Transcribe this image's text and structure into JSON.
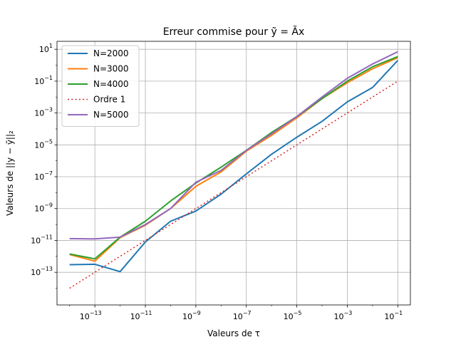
{
  "chart_data": {
    "type": "line",
    "title": "Erreur commise pour ỹ = Ãx",
    "xlabel": "Valeurs de τ",
    "ylabel": "Valeurs de ||y − ỹ||₂",
    "x_scale": "log",
    "y_scale": "log",
    "xlim": [
      3.16e-15,
      0.316
    ],
    "ylim": [
      8.91e-16,
      31.6
    ],
    "grid": true,
    "legend_position": "top-left",
    "x_ticks": [
      {
        "value": 1e-13,
        "base": "10",
        "exp": "−13"
      },
      {
        "value": 1e-11,
        "base": "10",
        "exp": "−11"
      },
      {
        "value": 1e-09,
        "base": "10",
        "exp": "−9"
      },
      {
        "value": 1e-07,
        "base": "10",
        "exp": "−7"
      },
      {
        "value": 1e-05,
        "base": "10",
        "exp": "−5"
      },
      {
        "value": 0.001,
        "base": "10",
        "exp": "−3"
      },
      {
        "value": 0.1,
        "base": "10",
        "exp": "−1"
      }
    ],
    "y_ticks": [
      {
        "value": 1e-13,
        "base": "10",
        "exp": "−13"
      },
      {
        "value": 1e-11,
        "base": "10",
        "exp": "−11"
      },
      {
        "value": 1e-09,
        "base": "10",
        "exp": "−9"
      },
      {
        "value": 1e-07,
        "base": "10",
        "exp": "−7"
      },
      {
        "value": 1e-05,
        "base": "10",
        "exp": "−5"
      },
      {
        "value": 0.001,
        "base": "10",
        "exp": "−3"
      },
      {
        "value": 0.1,
        "base": "10",
        "exp": "−1"
      },
      {
        "value": 10,
        "base": "10",
        "exp": "1"
      }
    ],
    "series": [
      {
        "name": "N=2000",
        "color": "#1f77b4",
        "style": "solid",
        "x": [
          1e-14,
          1e-13,
          1e-12,
          1e-11,
          1e-10,
          1e-09,
          1e-08,
          1e-07,
          1e-06,
          1e-05,
          0.0001,
          0.001,
          0.01,
          0.1
        ],
        "y": [
          3e-13,
          3.2e-13,
          1.1e-13,
          8e-12,
          1.6e-10,
          7e-10,
          8e-09,
          1.5e-07,
          2.6e-06,
          3e-05,
          0.0003,
          0.005,
          0.04,
          2
        ]
      },
      {
        "name": "N=3000",
        "color": "#ff7f0e",
        "style": "solid",
        "x": [
          1e-14,
          1e-13,
          1e-12,
          1e-11,
          1e-10,
          1e-09,
          1e-08,
          1e-07,
          1e-06,
          1e-05,
          0.0001,
          0.001,
          0.01,
          0.1
        ],
        "y": [
          1.3e-12,
          5e-13,
          1.5e-11,
          9e-11,
          1e-09,
          2.5e-08,
          2e-07,
          4e-06,
          4e-05,
          0.0005,
          0.008,
          0.08,
          0.6,
          3
        ]
      },
      {
        "name": "N=4000",
        "color": "#2ca02c",
        "style": "solid",
        "x": [
          1e-14,
          1e-13,
          1e-12,
          1e-11,
          1e-10,
          1e-09,
          1e-08,
          1e-07,
          1e-06,
          1e-05,
          0.0001,
          0.001,
          0.01,
          0.1
        ],
        "y": [
          1.4e-12,
          7e-13,
          1.6e-11,
          1.6e-10,
          3e-09,
          4e-08,
          4e-07,
          4.5e-06,
          6e-05,
          0.0006,
          0.008,
          0.1,
          0.8,
          3.5
        ]
      },
      {
        "name": "Ordre 1",
        "color": "#d62728",
        "style": "dotted",
        "x": [
          1e-14,
          0.1
        ],
        "y": [
          1e-14,
          0.1
        ]
      },
      {
        "name": "N=5000",
        "color": "#9467bd",
        "style": "solid",
        "x": [
          1e-14,
          1e-13,
          1e-12,
          1e-11,
          1e-10,
          1e-09,
          1e-08,
          1e-07,
          1e-06,
          1e-05,
          0.0001,
          0.001,
          0.01,
          0.1
        ],
        "y": [
          1.3e-11,
          1.25e-11,
          1.6e-11,
          1e-10,
          1e-09,
          4.5e-08,
          2.5e-07,
          4.5e-06,
          5e-05,
          0.0006,
          0.01,
          0.15,
          1.2,
          7
        ]
      }
    ]
  }
}
